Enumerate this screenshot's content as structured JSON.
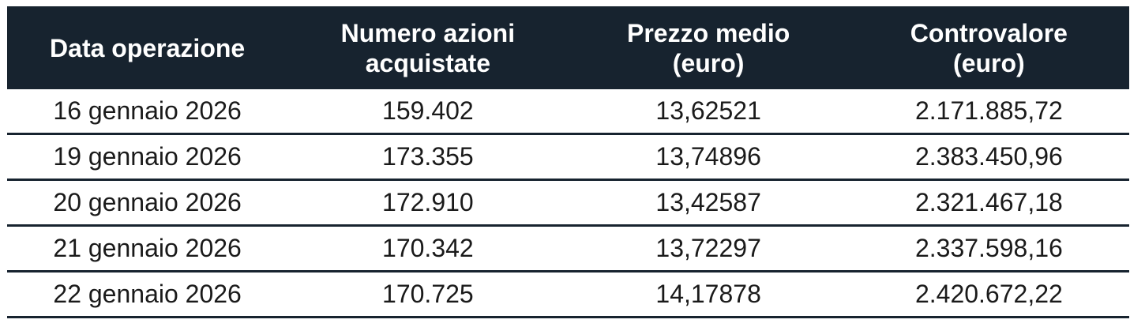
{
  "colors": {
    "header_bg": "#17232f",
    "header_text": "#ffffff",
    "body_text": "#1a1a1a",
    "divider": "#17232f",
    "page_bg": "#ffffff"
  },
  "table": {
    "headers": [
      "Data operazione",
      "Numero azioni\nacquistate",
      "Prezzo medio\n(euro)",
      "Controvalore\n(euro)"
    ],
    "rows": [
      {
        "date": "16 gennaio 2026",
        "shares": "159.402",
        "avg_price": "13,62521",
        "value": "2.171.885,72"
      },
      {
        "date": "19 gennaio 2026",
        "shares": "173.355",
        "avg_price": "13,74896",
        "value": "2.383.450,96"
      },
      {
        "date": "20 gennaio 2026",
        "shares": "172.910",
        "avg_price": "13,42587",
        "value": "2.321.467,18"
      },
      {
        "date": "21 gennaio 2026",
        "shares": "170.342",
        "avg_price": "13,72297",
        "value": "2.337.598,16"
      },
      {
        "date": "22 gennaio 2026",
        "shares": "170.725",
        "avg_price": "14,17878",
        "value": "2.420.672,22"
      }
    ]
  }
}
